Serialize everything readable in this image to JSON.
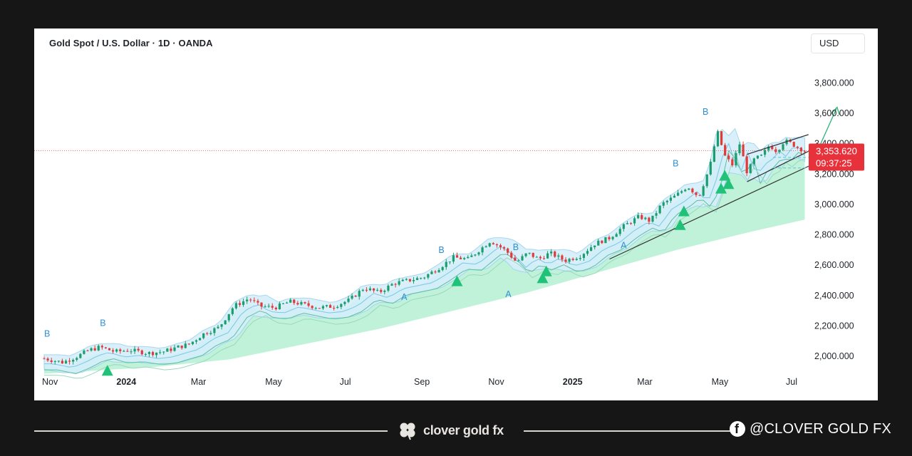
{
  "window": {
    "symbol_title": "Gold Spot / U.S. Dollar · 1D · OANDA",
    "currency_label": "USD"
  },
  "chart_data": {
    "type": "candlestick",
    "title": "Gold Spot / U.S. Dollar · 1D · OANDA",
    "ylim": [
      1880,
      3900
    ],
    "y_ticks": [
      {
        "value": 2000,
        "label": "2,000.000"
      },
      {
        "value": 2200,
        "label": "2,200.000"
      },
      {
        "value": 2400,
        "label": "2,400.000"
      },
      {
        "value": 2600,
        "label": "2,600.000"
      },
      {
        "value": 2800,
        "label": "2,800.000"
      },
      {
        "value": 3000,
        "label": "3,000.000"
      },
      {
        "value": 3200,
        "label": "3,200.000"
      },
      {
        "value": 3400,
        "label": "3,400.000"
      },
      {
        "value": 3600,
        "label": "3,600.000"
      },
      {
        "value": 3800,
        "label": "3,800.000"
      }
    ],
    "x_ticks": [
      {
        "t": 0,
        "label": "Nov",
        "bold": false
      },
      {
        "t": 2,
        "label": "2024",
        "bold": true
      },
      {
        "t": 4,
        "label": "Mar",
        "bold": false
      },
      {
        "t": 6,
        "label": "May",
        "bold": false
      },
      {
        "t": 8,
        "label": "Jul",
        "bold": false
      },
      {
        "t": 10,
        "label": "Sep",
        "bold": false
      },
      {
        "t": 12,
        "label": "Nov",
        "bold": false
      },
      {
        "t": 14,
        "label": "2025",
        "bold": true
      },
      {
        "t": 16,
        "label": "Mar",
        "bold": false
      },
      {
        "t": 18,
        "label": "May",
        "bold": false
      },
      {
        "t": 20,
        "label": "Jul",
        "bold": false
      }
    ],
    "price_path": [
      [
        0.0,
        1985
      ],
      [
        0.5,
        1960
      ],
      [
        0.9,
        2000
      ],
      [
        1.2,
        2040
      ],
      [
        1.5,
        2060
      ],
      [
        1.9,
        2030
      ],
      [
        2.3,
        2040
      ],
      [
        2.8,
        2020
      ],
      [
        3.2,
        2030
      ],
      [
        3.6,
        2060
      ],
      [
        3.9,
        2080
      ],
      [
        4.3,
        2150
      ],
      [
        4.7,
        2190
      ],
      [
        5.1,
        2330
      ],
      [
        5.5,
        2380
      ],
      [
        5.8,
        2330
      ],
      [
        6.2,
        2320
      ],
      [
        6.6,
        2360
      ],
      [
        7.0,
        2340
      ],
      [
        7.4,
        2320
      ],
      [
        7.8,
        2330
      ],
      [
        8.2,
        2370
      ],
      [
        8.6,
        2450
      ],
      [
        9.0,
        2420
      ],
      [
        9.4,
        2480
      ],
      [
        9.8,
        2500
      ],
      [
        10.2,
        2520
      ],
      [
        10.6,
        2580
      ],
      [
        11.0,
        2650
      ],
      [
        11.4,
        2640
      ],
      [
        11.7,
        2700
      ],
      [
        12.0,
        2760
      ],
      [
        12.4,
        2700
      ],
      [
        12.7,
        2620
      ],
      [
        13.0,
        2680
      ],
      [
        13.3,
        2640
      ],
      [
        13.6,
        2680
      ],
      [
        14.0,
        2630
      ],
      [
        14.4,
        2660
      ],
      [
        14.8,
        2740
      ],
      [
        15.2,
        2780
      ],
      [
        15.6,
        2860
      ],
      [
        16.0,
        2920
      ],
      [
        16.3,
        2890
      ],
      [
        16.6,
        3000
      ],
      [
        17.0,
        3060
      ],
      [
        17.3,
        3120
      ],
      [
        17.6,
        3050
      ],
      [
        17.9,
        3250
      ],
      [
        18.1,
        3480
      ],
      [
        18.3,
        3320
      ],
      [
        18.5,
        3260
      ],
      [
        18.7,
        3400
      ],
      [
        18.9,
        3210
      ],
      [
        19.1,
        3300
      ],
      [
        19.3,
        3320
      ],
      [
        19.5,
        3390
      ],
      [
        19.7,
        3350
      ],
      [
        19.9,
        3420
      ],
      [
        20.1,
        3400
      ],
      [
        20.3,
        3370
      ],
      [
        20.45,
        3353.62
      ]
    ],
    "cloud_bottom": [
      [
        0.0,
        1885
      ],
      [
        3.0,
        1930
      ],
      [
        5.0,
        1980
      ],
      [
        7.0,
        2080
      ],
      [
        9.0,
        2180
      ],
      [
        11.0,
        2300
      ],
      [
        13.0,
        2420
      ],
      [
        15.0,
        2560
      ],
      [
        17.0,
        2700
      ],
      [
        19.0,
        2820
      ],
      [
        20.45,
        2900
      ]
    ],
    "wave_labels": [
      {
        "t": 0.0,
        "v": 2130,
        "text": "B"
      },
      {
        "t": 1.5,
        "v": 2200,
        "text": "B"
      },
      {
        "t": 10.6,
        "v": 2680,
        "text": "B"
      },
      {
        "t": 12.6,
        "v": 2700,
        "text": "B"
      },
      {
        "t": 16.9,
        "v": 3250,
        "text": "B"
      },
      {
        "t": 17.7,
        "v": 3590,
        "text": "B"
      },
      {
        "t": 9.6,
        "v": 2370,
        "text": "A"
      },
      {
        "t": 12.4,
        "v": 2390,
        "text": "A"
      },
      {
        "t": 15.5,
        "v": 2710,
        "text": "A"
      }
    ],
    "buy_signals": [
      {
        "t": 1.7,
        "v": 1900
      },
      {
        "t": 11.1,
        "v": 2490
      },
      {
        "t": 13.4,
        "v": 2510
      },
      {
        "t": 13.5,
        "v": 2555
      },
      {
        "t": 17.1,
        "v": 2860
      },
      {
        "t": 17.2,
        "v": 2950
      },
      {
        "t": 18.2,
        "v": 3100
      },
      {
        "t": 18.3,
        "v": 3185
      },
      {
        "t": 18.4,
        "v": 3130
      }
    ],
    "last_price": {
      "value": 3353.62,
      "label": "3,353.620",
      "countdown": "09:37:25"
    }
  },
  "footer": {
    "brand": "clover gold fx",
    "social": "@CLOVER GOLD FX",
    "brand_icon": "clover-icon",
    "social_icon": "facebook-icon"
  }
}
